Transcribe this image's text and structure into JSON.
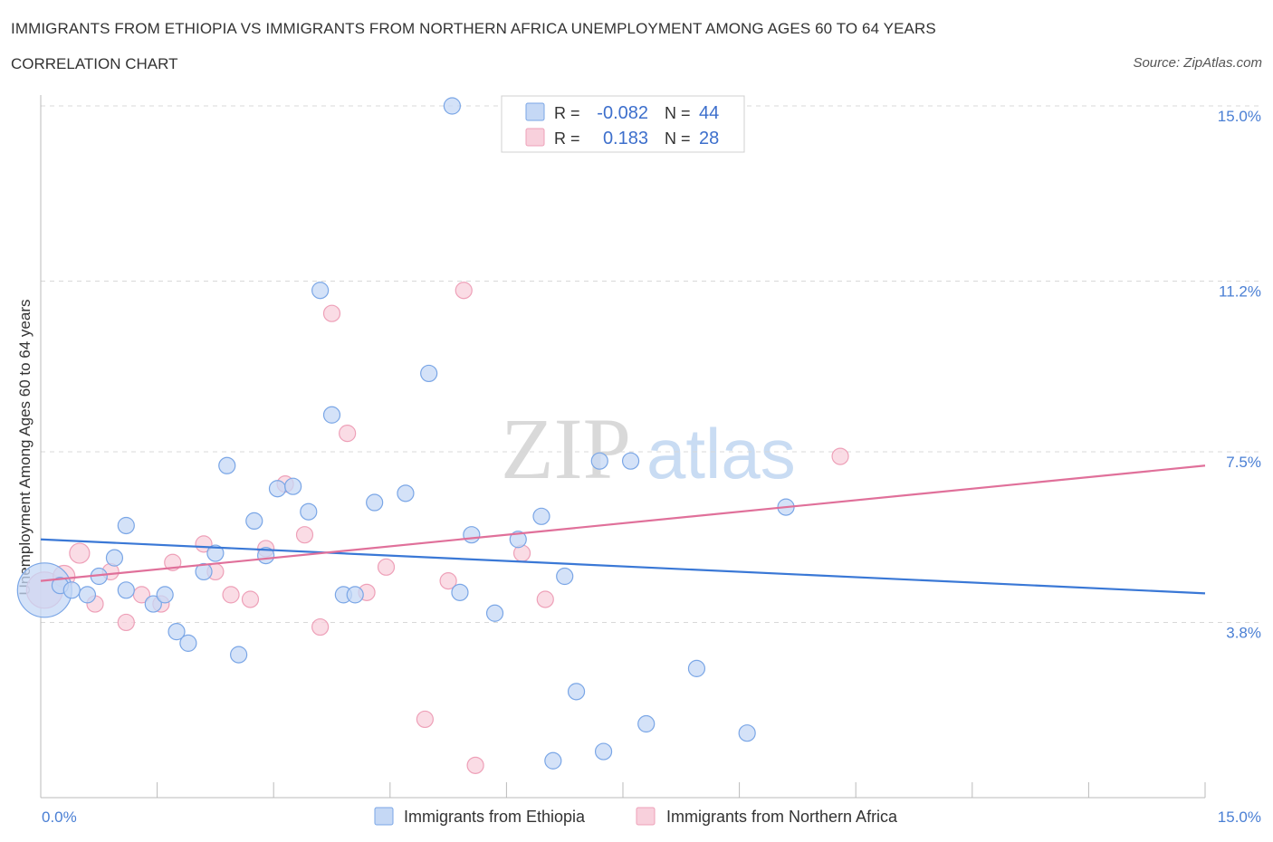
{
  "title": "IMMIGRANTS FROM ETHIOPIA VS IMMIGRANTS FROM NORTHERN AFRICA UNEMPLOYMENT AMONG AGES 60 TO 64 YEARS",
  "subtitle": "CORRELATION CHART",
  "source": "Source: ZipAtlas.com",
  "watermark": {
    "zip": "ZIP",
    "atlas": "atlas"
  },
  "colors": {
    "ethiopia_fill": "#c5d8f5",
    "ethiopia_stroke": "#7aa6e6",
    "ethiopia_line": "#3a78d6",
    "nafrica_fill": "#f8d0dc",
    "nafrica_stroke": "#eea0b8",
    "nafrica_line": "#e0709a",
    "grid": "#d8d8d8",
    "tick_text": "#4a7fd4"
  },
  "legend": {
    "rows": [
      {
        "r_label": "R =",
        "r_value": "-0.082",
        "n_label": "N =",
        "n_value": "44"
      },
      {
        "r_label": "R =",
        "r_value": "0.183",
        "n_label": "N =",
        "n_value": "28"
      }
    ]
  },
  "bottom_legend": [
    "Immigrants from Ethiopia",
    "Immigrants from Northern Africa"
  ],
  "chart_data": {
    "type": "scatter",
    "title": "IMMIGRANTS FROM ETHIOPIA VS IMMIGRANTS FROM NORTHERN AFRICA UNEMPLOYMENT AMONG AGES 60 TO 64 YEARS",
    "xlabel": "",
    "ylabel": "Unemployment Among Ages 60 to 64 years",
    "xlim": [
      0,
      15
    ],
    "ylim": [
      0,
      15
    ],
    "x_tick_labels": [
      "0.0%",
      "15.0%"
    ],
    "y_ticks": [
      3.8,
      7.5,
      11.2,
      15.0
    ],
    "y_tick_labels": [
      "3.8%",
      "7.5%",
      "11.2%",
      "15.0%"
    ],
    "grid": true,
    "series": [
      {
        "name": "Immigrants from Ethiopia",
        "R": -0.082,
        "N": 44,
        "trend": {
          "x": [
            0,
            15
          ],
          "y": [
            5.6,
            4.43
          ]
        },
        "points": [
          [
            0.05,
            4.5,
            30
          ],
          [
            0.25,
            4.6,
            9
          ],
          [
            0.4,
            4.5,
            9
          ],
          [
            0.6,
            4.4,
            9
          ],
          [
            0.75,
            4.8,
            9
          ],
          [
            0.95,
            5.2,
            9
          ],
          [
            1.1,
            5.9,
            9
          ],
          [
            1.1,
            4.5,
            9
          ],
          [
            1.45,
            4.2,
            9
          ],
          [
            1.6,
            4.4,
            9
          ],
          [
            1.75,
            3.6,
            9
          ],
          [
            1.9,
            3.35,
            9
          ],
          [
            2.1,
            4.9,
            9
          ],
          [
            2.25,
            5.3,
            9
          ],
          [
            2.4,
            7.2,
            9
          ],
          [
            2.55,
            3.1,
            9
          ],
          [
            2.75,
            6.0,
            9
          ],
          [
            2.9,
            5.25,
            9
          ],
          [
            3.05,
            6.7,
            9
          ],
          [
            3.25,
            6.75,
            9
          ],
          [
            3.45,
            6.2,
            9
          ],
          [
            3.6,
            11.0,
            9
          ],
          [
            3.75,
            8.3,
            9
          ],
          [
            3.9,
            4.4,
            9
          ],
          [
            4.05,
            4.4,
            9
          ],
          [
            4.3,
            6.4,
            9
          ],
          [
            4.7,
            6.6,
            9
          ],
          [
            5.0,
            9.2,
            9
          ],
          [
            5.3,
            15.0,
            9
          ],
          [
            5.4,
            4.45,
            9
          ],
          [
            5.55,
            5.7,
            9
          ],
          [
            5.85,
            4.0,
            9
          ],
          [
            6.15,
            5.6,
            9
          ],
          [
            6.45,
            6.1,
            9
          ],
          [
            6.6,
            0.8,
            9
          ],
          [
            6.75,
            4.8,
            9
          ],
          [
            6.9,
            2.3,
            9
          ],
          [
            7.2,
            7.3,
            9
          ],
          [
            7.25,
            1.0,
            9
          ],
          [
            7.6,
            7.3,
            9
          ],
          [
            7.8,
            1.6,
            9
          ],
          [
            8.45,
            2.8,
            9
          ],
          [
            9.1,
            1.4,
            9
          ],
          [
            9.6,
            6.3,
            9
          ]
        ]
      },
      {
        "name": "Immigrants from Northern Africa",
        "R": 0.183,
        "N": 28,
        "trend": {
          "x": [
            0,
            15
          ],
          "y": [
            4.7,
            7.2
          ]
        },
        "points": [
          [
            0.05,
            4.5,
            20
          ],
          [
            0.3,
            4.8,
            12
          ],
          [
            0.5,
            5.3,
            11
          ],
          [
            0.7,
            4.2,
            9
          ],
          [
            0.9,
            4.9,
            9
          ],
          [
            1.1,
            3.8,
            9
          ],
          [
            1.3,
            4.4,
            9
          ],
          [
            1.55,
            4.2,
            9
          ],
          [
            1.7,
            5.1,
            9
          ],
          [
            2.1,
            5.5,
            9
          ],
          [
            2.25,
            4.9,
            9
          ],
          [
            2.45,
            4.4,
            9
          ],
          [
            2.7,
            4.3,
            9
          ],
          [
            2.9,
            5.4,
            9
          ],
          [
            3.15,
            6.8,
            9
          ],
          [
            3.4,
            5.7,
            9
          ],
          [
            3.6,
            3.7,
            9
          ],
          [
            3.75,
            10.5,
            9
          ],
          [
            3.95,
            7.9,
            9
          ],
          [
            4.2,
            4.45,
            9
          ],
          [
            4.45,
            5.0,
            9
          ],
          [
            4.95,
            1.7,
            9
          ],
          [
            5.25,
            4.7,
            9
          ],
          [
            5.45,
            11.0,
            9
          ],
          [
            5.6,
            0.7,
            9
          ],
          [
            6.2,
            5.3,
            9
          ],
          [
            6.5,
            4.3,
            9
          ],
          [
            10.3,
            7.4,
            9
          ]
        ]
      }
    ]
  }
}
